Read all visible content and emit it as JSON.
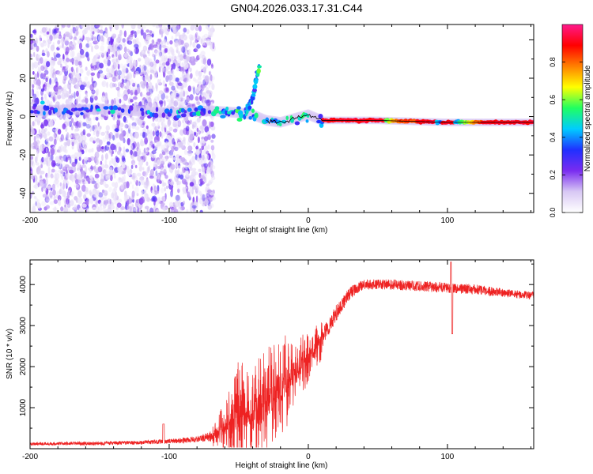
{
  "title": "GN04.2026.033.17.31.C44",
  "chart_data": [
    {
      "type": "heatmap",
      "name": "spectrogram",
      "xlabel": "Height of straight line (km)",
      "ylabel": "Frequency (Hz)",
      "xlim": [
        -200,
        162
      ],
      "ylim": [
        -50,
        48
      ],
      "xticks": [
        -200,
        -100,
        0,
        100
      ],
      "xtick_labels": [
        "-200",
        "-100",
        "0",
        "100"
      ],
      "yticks": [
        -40,
        -20,
        0,
        20,
        40
      ],
      "ytick_labels": [
        "-40",
        "-20",
        "0",
        "20",
        "40"
      ],
      "colorbar": {
        "label": "Normalized spectral amplitude",
        "range": [
          0,
          1
        ],
        "ticks": [
          0.0,
          0.2,
          0.4,
          0.6,
          0.8
        ],
        "tick_labels": [
          "0.0",
          "0.2",
          "0.4",
          "0.6",
          "0.8"
        ],
        "colors": [
          "#ffffff",
          "#d8c8f4",
          "#7a2cf0",
          "#2030ff",
          "#00ccff",
          "#20ff60",
          "#ffff00",
          "#ff8000",
          "#ff0000",
          "#ff1a8c"
        ]
      },
      "features": {
        "noise_region_x": [
          -200,
          -72
        ],
        "main_line_freq_hz": 0,
        "carrier_track": [
          [
            -200,
            3
          ],
          [
            -150,
            4
          ],
          [
            -100,
            2
          ],
          [
            -70,
            3
          ],
          [
            -50,
            2
          ],
          [
            -40,
            1
          ],
          [
            -30,
            -2
          ],
          [
            -20,
            -3
          ],
          [
            -10,
            -1
          ],
          [
            0,
            1
          ],
          [
            10,
            -2
          ],
          [
            50,
            -2
          ],
          [
            100,
            -3
          ],
          [
            162,
            -3
          ]
        ],
        "rising_branch": [
          [
            -45,
            2
          ],
          [
            -40,
            10
          ],
          [
            -37,
            20
          ],
          [
            -35,
            27
          ]
        ]
      }
    },
    {
      "type": "line",
      "name": "snr",
      "xlabel": "Height of straight line (km)",
      "ylabel": "SNR (10 * v/v)",
      "xlim": [
        -200,
        162
      ],
      "ylim": [
        0,
        4600
      ],
      "xticks": [
        -200,
        -100,
        0,
        100
      ],
      "xtick_labels": [
        "-200",
        "-100",
        "0",
        "100"
      ],
      "yticks": [
        1000,
        2000,
        3000,
        4000
      ],
      "ytick_labels": [
        "1000",
        "2000",
        "3000",
        "4000"
      ],
      "color": "#ee2222",
      "series": [
        {
          "name": "SNR",
          "x": [
            -200,
            -150,
            -120,
            -100,
            -80,
            -70,
            -60,
            -50,
            -40,
            -30,
            -20,
            -10,
            0,
            10,
            20,
            30,
            40,
            60,
            80,
            100,
            120,
            140,
            162
          ],
          "base": [
            120,
            130,
            150,
            180,
            230,
            300,
            500,
            900,
            800,
            1200,
            1500,
            1850,
            2200,
            2700,
            3300,
            3800,
            4000,
            4000,
            3960,
            3920,
            3880,
            3800,
            3720
          ],
          "spread": [
            80,
            90,
            100,
            110,
            150,
            250,
            700,
            1300,
            1100,
            1400,
            1300,
            900,
            600,
            500,
            400,
            300,
            250,
            250,
            250,
            250,
            250,
            200,
            200
          ]
        }
      ]
    }
  ]
}
